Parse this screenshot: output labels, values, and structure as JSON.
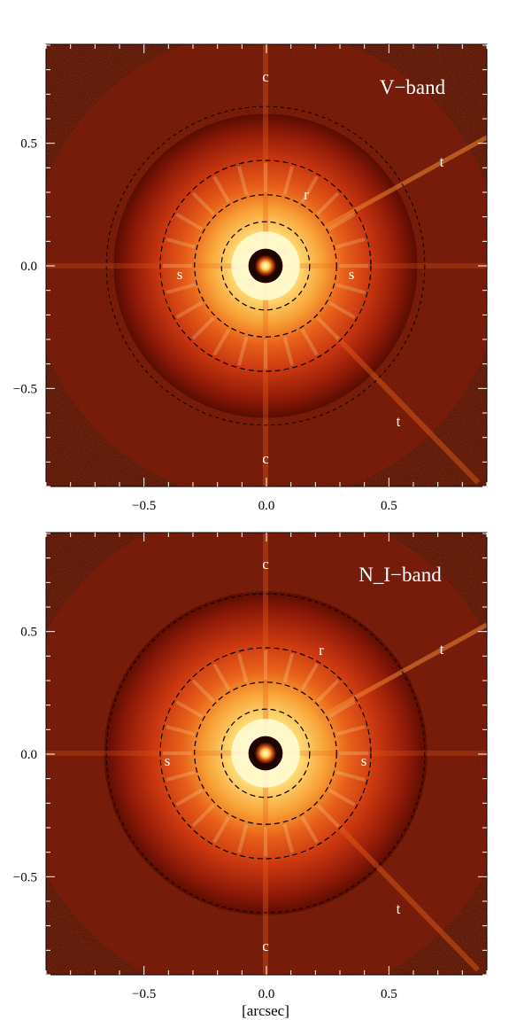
{
  "figure": {
    "x_axis_label": "[arcsec]",
    "axis_range": [
      -0.9,
      0.9
    ],
    "tick_values": [
      -0.5,
      0.0,
      0.5
    ],
    "tick_labels": [
      "−0.5",
      "0.0",
      "0.5"
    ],
    "colormap": [
      "#000000",
      "#4a0800",
      "#8f1a08",
      "#c8360f",
      "#e8601a",
      "#f7a035",
      "#ffd972",
      "#fffbd0"
    ]
  },
  "panels": [
    {
      "band_label": "V−band",
      "annotations": [
        "c",
        "t",
        "r",
        "s",
        "s",
        "t",
        "c"
      ],
      "ring_radii": [
        0.18,
        0.29,
        0.43,
        0.65
      ]
    },
    {
      "band_label": "N_I−band",
      "annotations": [
        "c",
        "r",
        "t",
        "s",
        "s",
        "t",
        "c"
      ],
      "ring_radii": [
        0.18,
        0.29,
        0.43,
        0.65
      ]
    }
  ]
}
